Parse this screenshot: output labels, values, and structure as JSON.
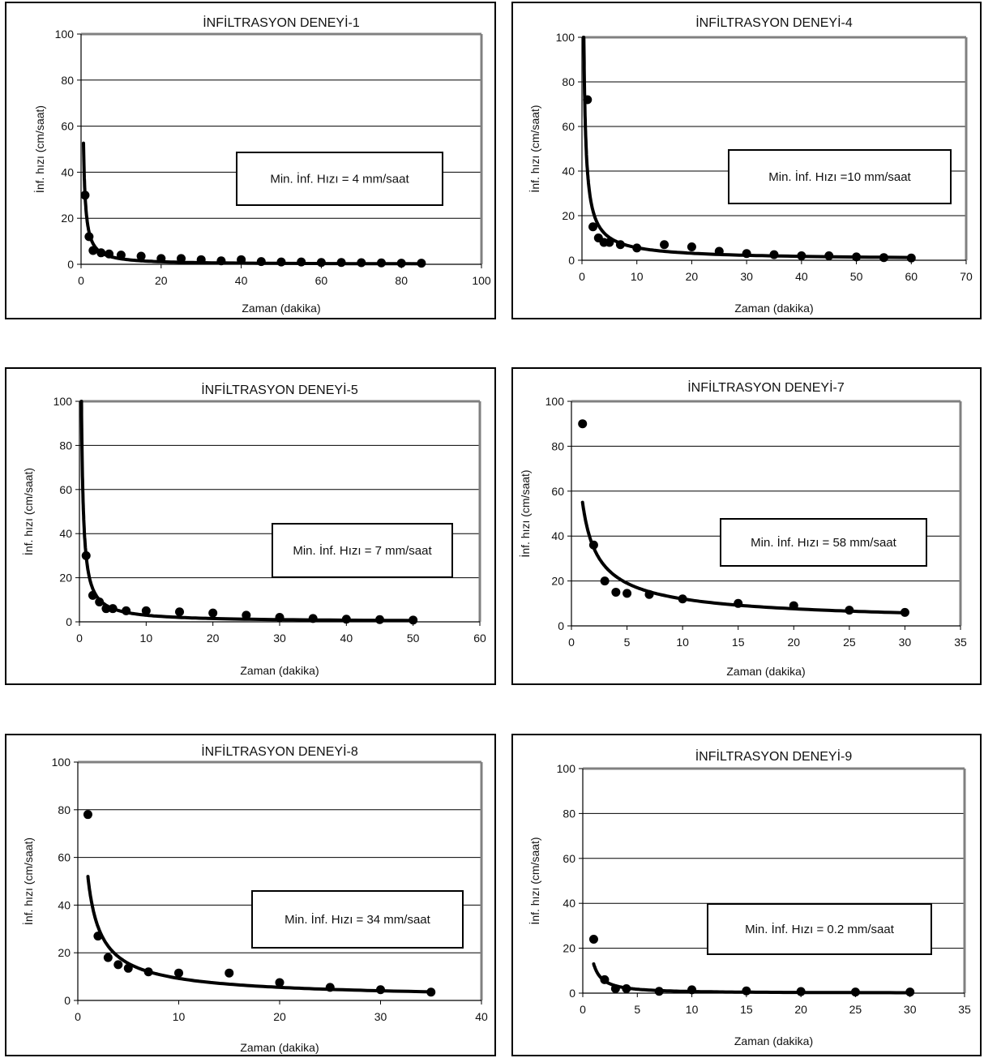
{
  "chart_data": [
    {
      "type": "scatter",
      "title": "İNFİLTRASYON DENEYİ-1",
      "xlabel": "Zaman (dakika)",
      "ylabel": "İnf. hızı (cm/saat)",
      "xlim": [
        0,
        100
      ],
      "ylim": [
        0,
        100
      ],
      "xticks": [
        "0",
        "20",
        "40",
        "60",
        "80",
        "100"
      ],
      "yticks": [
        "0",
        "20",
        "40",
        "60",
        "80",
        "100"
      ],
      "grid": "horizontal",
      "annotation": "Min. İnf. Hızı = 4 mm/saat",
      "points": {
        "x": [
          1,
          2,
          3,
          5,
          7,
          10,
          15,
          20,
          25,
          30,
          35,
          40,
          45,
          50,
          55,
          60,
          65,
          70,
          75,
          80,
          85
        ],
        "y": [
          30,
          12,
          6,
          5,
          4.5,
          4,
          3.5,
          2.5,
          2.5,
          2,
          1.5,
          2,
          1.2,
          1,
          1,
          0.8,
          0.8,
          0.7,
          0.6,
          0.5,
          0.5
        ]
      },
      "trend": {
        "type": "power",
        "x_range": [
          0.6,
          85
        ],
        "y_at_x1": 30,
        "exponent": -1.1
      }
    },
    {
      "type": "scatter",
      "title": "İNFİLTRASYON DENEYİ-4",
      "xlabel": "Zaman (dakika)",
      "ylabel": "İnf. hızı (cm/saat)",
      "xlim": [
        0,
        70
      ],
      "ylim": [
        0,
        100
      ],
      "xticks": [
        "0",
        "10",
        "20",
        "30",
        "40",
        "50",
        "60",
        "70"
      ],
      "yticks": [
        "0",
        "20",
        "40",
        "60",
        "80",
        "100"
      ],
      "grid": "horizontal",
      "annotation": "Min. İnf. Hızı =10 mm/saat",
      "points": {
        "x": [
          1,
          2,
          3,
          4,
          5,
          7,
          10,
          15,
          20,
          25,
          30,
          35,
          40,
          45,
          50,
          55,
          60
        ],
        "y": [
          72,
          15,
          10,
          8,
          8,
          7,
          5.5,
          7,
          6,
          4,
          3,
          2.5,
          2,
          2,
          1.5,
          1.2,
          1
        ]
      },
      "trend": {
        "type": "power",
        "x_range": [
          0.28,
          60
        ],
        "y_at_x1": 40,
        "exponent": -0.85
      }
    },
    {
      "type": "scatter",
      "title": "İNFİLTRASYON DENEYİ-5",
      "xlabel": "Zaman (dakika)",
      "ylabel": "İnf. hızı (cm/saat)",
      "xlim": [
        0,
        60
      ],
      "ylim": [
        0,
        100
      ],
      "xticks": [
        "0",
        "10",
        "20",
        "30",
        "40",
        "50",
        "60"
      ],
      "yticks": [
        "0",
        "20",
        "40",
        "60",
        "80",
        "100"
      ],
      "grid": "horizontal",
      "annotation": "Min. İnf. Hızı = 7 mm/saat",
      "points": {
        "x": [
          1,
          2,
          3,
          4,
          5,
          7,
          10,
          15,
          20,
          25,
          30,
          35,
          40,
          45,
          50
        ],
        "y": [
          30,
          12,
          9,
          6,
          6,
          5,
          5,
          4.5,
          4,
          3,
          2,
          1.5,
          1.2,
          1,
          0.8
        ]
      },
      "trend": {
        "type": "power",
        "x_range": [
          0.3,
          50
        ],
        "y_at_x1": 30,
        "exponent": -1.0
      }
    },
    {
      "type": "scatter",
      "title": "İNFİLTRASYON DENEYİ-7",
      "xlabel": "Zaman (dakika)",
      "ylabel": "İnf. hızı (cm/saat)",
      "xlim": [
        0,
        35
      ],
      "ylim": [
        0,
        100
      ],
      "xticks": [
        "0",
        "5",
        "10",
        "15",
        "20",
        "25",
        "30",
        "35"
      ],
      "yticks": [
        "0",
        "20",
        "40",
        "60",
        "80",
        "100"
      ],
      "grid": "horizontal",
      "annotation": "Min. İnf. Hızı =  58 mm/saat",
      "points": {
        "x": [
          1,
          2,
          3,
          4,
          5,
          7,
          10,
          15,
          20,
          25,
          30
        ],
        "y": [
          90,
          36,
          20,
          15,
          14.5,
          14,
          12,
          10,
          9,
          7,
          6
        ]
      },
      "trend": {
        "type": "power",
        "x_range": [
          1,
          30
        ],
        "y_at_x1": 55,
        "exponent": -0.66
      }
    },
    {
      "type": "scatter",
      "title": "İNFİLTRASYON DENEYİ-8",
      "xlabel": "Zaman (dakika)",
      "ylabel": "İnf. hızı (cm/saat)",
      "xlim": [
        0,
        40
      ],
      "ylim": [
        0,
        100
      ],
      "xticks": [
        "0",
        "10",
        "20",
        "30",
        "40"
      ],
      "yticks": [
        "0",
        "20",
        "40",
        "60",
        "80",
        "100"
      ],
      "grid": "horizontal",
      "annotation": "Min. İnf. Hızı = 34 mm/saat",
      "points": {
        "x": [
          1,
          2,
          3,
          4,
          5,
          7,
          10,
          15,
          20,
          25,
          30,
          35
        ],
        "y": [
          78,
          27,
          18,
          15,
          13.5,
          12,
          11.5,
          11.5,
          7.5,
          5.5,
          4.5,
          3.5
        ]
      },
      "trend": {
        "type": "power",
        "x_range": [
          1,
          35
        ],
        "y_at_x1": 52,
        "exponent": -0.75
      }
    },
    {
      "type": "scatter",
      "title": "İNFİLTRASYON DENEYİ-9",
      "xlabel": "Zaman (dakika)",
      "ylabel": "İnf. hızı (cm/saat)",
      "xlim": [
        0,
        35
      ],
      "ylim": [
        0,
        100
      ],
      "xticks": [
        "0",
        "5",
        "10",
        "15",
        "20",
        "25",
        "30",
        "35"
      ],
      "yticks": [
        "0",
        "20",
        "40",
        "60",
        "80",
        "100"
      ],
      "grid": "horizontal",
      "annotation": "Min. İnf. Hızı = 0.2 mm/saat",
      "points": {
        "x": [
          1,
          2,
          3,
          4,
          7,
          10,
          15,
          20,
          25,
          30
        ],
        "y": [
          24,
          6,
          2,
          2,
          0.8,
          1.5,
          1,
          0.7,
          0.5,
          0.5
        ]
      },
      "trend": {
        "type": "power",
        "x_range": [
          1,
          30
        ],
        "y_at_x1": 13,
        "exponent": -1.25
      }
    }
  ]
}
